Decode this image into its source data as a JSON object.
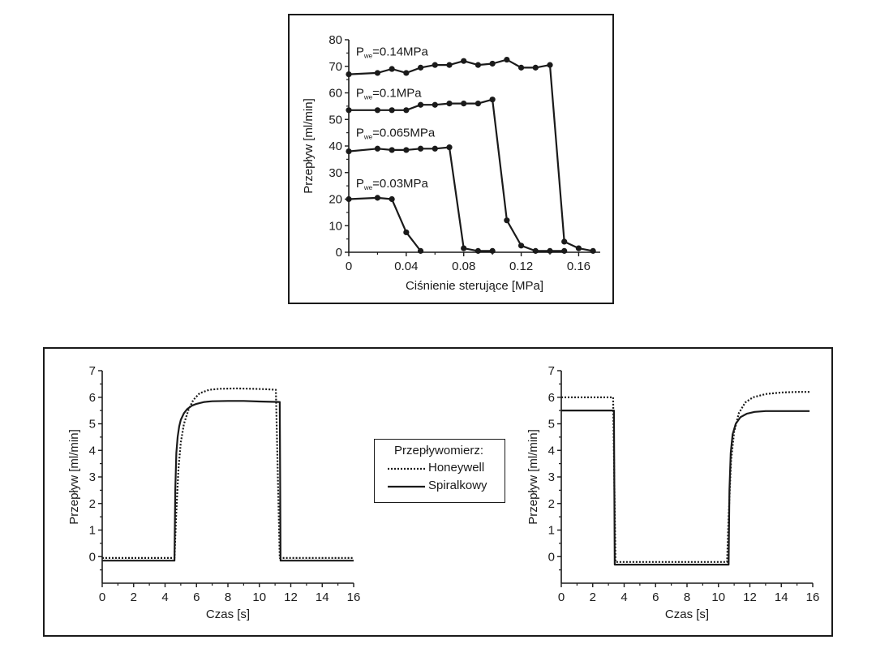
{
  "chart_data": [
    {
      "type": "line",
      "xlabel": "Ciśnienie sterujące [MPa]",
      "ylabel": "Przepływ [ml/min]",
      "xlim": [
        0,
        0.175
      ],
      "ylim": [
        0,
        80
      ],
      "xticks": [
        "0",
        "0.04",
        "0.08",
        "0.12",
        "0.16"
      ],
      "xtick_values": [
        0,
        0.04,
        0.08,
        0.12,
        0.16
      ],
      "yticks": [
        "0",
        "10",
        "20",
        "30",
        "40",
        "50",
        "60",
        "70",
        "80"
      ],
      "ytick_values": [
        0,
        10,
        20,
        30,
        40,
        50,
        60,
        70,
        80
      ],
      "markers": true,
      "series": [
        {
          "name": "P_we=0.14MPa",
          "label_main": "P",
          "label_sub": "we",
          "label_rest": "=0.14MPa",
          "label_at": [
            0.005,
            74
          ],
          "x": [
            0,
            0.02,
            0.03,
            0.04,
            0.05,
            0.06,
            0.07,
            0.08,
            0.09,
            0.1,
            0.11,
            0.12,
            0.13,
            0.14,
            0.15,
            0.16,
            0.17
          ],
          "y": [
            67,
            67.5,
            69,
            67.5,
            69.5,
            70.5,
            70.5,
            72,
            70.5,
            71,
            72.5,
            69.5,
            69.5,
            70.5,
            4,
            1.5,
            0.5
          ]
        },
        {
          "name": "P_we=0.1MPa",
          "label_main": "P",
          "label_sub": "we",
          "label_rest": "=0.1MPa",
          "label_at": [
            0.005,
            58.5
          ],
          "x": [
            0,
            0.02,
            0.03,
            0.04,
            0.05,
            0.06,
            0.07,
            0.08,
            0.09,
            0.1,
            0.11,
            0.12,
            0.13,
            0.14,
            0.15
          ],
          "y": [
            53.5,
            53.5,
            53.5,
            53.5,
            55.5,
            55.5,
            56,
            56,
            56,
            57.5,
            12,
            2.5,
            0.5,
            0.5,
            0.5
          ]
        },
        {
          "name": "P_we=0.065MPa",
          "label_main": "P",
          "label_sub": "we",
          "label_rest": "=0.065MPa",
          "label_at": [
            0.005,
            43.5
          ],
          "x": [
            0,
            0.02,
            0.03,
            0.04,
            0.05,
            0.06,
            0.07,
            0.08,
            0.09,
            0.1
          ],
          "y": [
            38,
            39,
            38.5,
            38.5,
            39,
            39,
            39.5,
            1.5,
            0.5,
            0.5
          ]
        },
        {
          "name": "P_we=0.03MPa",
          "label_main": "P",
          "label_sub": "we",
          "label_rest": "=0.03MPa",
          "label_at": [
            0.005,
            24.5
          ],
          "x": [
            0,
            0.02,
            0.03,
            0.04,
            0.05
          ],
          "y": [
            20,
            20.5,
            20,
            7.5,
            0.5
          ]
        }
      ]
    },
    {
      "type": "line",
      "xlabel": "Czas [s]",
      "ylabel": "Przepływ [ml/min]",
      "xlim": [
        0,
        16
      ],
      "ylim": [
        -1,
        7
      ],
      "xticks": [
        "0",
        "2",
        "4",
        "6",
        "8",
        "10",
        "12",
        "14",
        "16"
      ],
      "xtick_values": [
        0,
        2,
        4,
        6,
        8,
        10,
        12,
        14,
        16
      ],
      "yticks": [
        "0",
        "1",
        "2",
        "3",
        "4",
        "5",
        "6",
        "7"
      ],
      "ytick_values": [
        0,
        1,
        2,
        3,
        4,
        5,
        6,
        7
      ],
      "series": [
        {
          "name": "Honeywell",
          "style": "dotted",
          "x": [
            0,
            4.6,
            4.7,
            4.85,
            5.0,
            5.2,
            5.5,
            5.8,
            6.2,
            6.8,
            7.5,
            8.5,
            9.5,
            10.5,
            11.05,
            11.3,
            11.35,
            16
          ],
          "y": [
            -0.05,
            -0.05,
            1.5,
            3.3,
            4.3,
            5.0,
            5.55,
            5.9,
            6.15,
            6.28,
            6.32,
            6.33,
            6.32,
            6.3,
            6.28,
            -0.05,
            -0.05,
            -0.05
          ]
        },
        {
          "name": "Spiralkowy",
          "style": "solid",
          "x": [
            0,
            4.6,
            4.65,
            4.72,
            4.8,
            4.9,
            5.0,
            5.2,
            5.4,
            5.7,
            6.0,
            6.5,
            7.0,
            8.0,
            9.0,
            10.0,
            11.3,
            11.35,
            16
          ],
          "y": [
            -0.15,
            -0.15,
            2.5,
            3.9,
            4.5,
            4.9,
            5.15,
            5.4,
            5.55,
            5.68,
            5.75,
            5.82,
            5.85,
            5.86,
            5.86,
            5.84,
            5.82,
            -0.15,
            -0.15
          ]
        }
      ]
    },
    {
      "type": "line",
      "xlabel": "Czas [s]",
      "ylabel": "Przepływ [ml/min]",
      "xlim": [
        0,
        16
      ],
      "ylim": [
        -1,
        7
      ],
      "xticks": [
        "0",
        "2",
        "4",
        "6",
        "8",
        "10",
        "12",
        "14",
        "16"
      ],
      "xtick_values": [
        0,
        2,
        4,
        6,
        8,
        10,
        12,
        14,
        16
      ],
      "yticks": [
        "0",
        "1",
        "2",
        "3",
        "4",
        "5",
        "6",
        "7"
      ],
      "ytick_values": [
        0,
        1,
        2,
        3,
        4,
        5,
        6,
        7
      ],
      "series": [
        {
          "name": "Honeywell",
          "style": "dotted",
          "x": [
            0,
            3.3,
            3.45,
            10.55,
            10.65,
            10.8,
            11.0,
            11.3,
            11.7,
            12.2,
            13.0,
            14.0,
            15.0,
            15.8
          ],
          "y": [
            6.0,
            6.0,
            -0.2,
            -0.2,
            1.5,
            3.6,
            4.7,
            5.4,
            5.8,
            6.0,
            6.12,
            6.18,
            6.2,
            6.2
          ]
        },
        {
          "name": "Spiralkowy",
          "style": "solid",
          "x": [
            0,
            3.35,
            3.4,
            10.65,
            10.7,
            10.78,
            10.9,
            11.1,
            11.4,
            11.8,
            12.3,
            13.0,
            14.0,
            15.0,
            15.8
          ],
          "y": [
            5.5,
            5.5,
            -0.3,
            -0.3,
            2.5,
            3.9,
            4.6,
            5.0,
            5.25,
            5.38,
            5.45,
            5.48,
            5.48,
            5.48,
            5.48
          ]
        }
      ]
    }
  ],
  "legend": {
    "title": "Przepływomierz:",
    "items": [
      {
        "label": "Honeywell",
        "style": "dotted"
      },
      {
        "label": "Spiralkowy",
        "style": "solid"
      }
    ],
    "placement": "center"
  }
}
